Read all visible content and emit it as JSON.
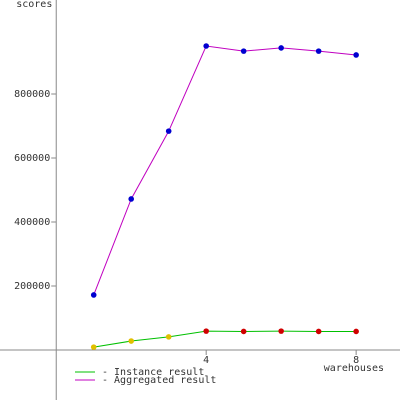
{
  "chart_data": {
    "type": "line",
    "y_label": "scores",
    "x_label": "warehouses",
    "x": [
      1,
      2,
      3,
      4,
      5,
      6,
      7,
      8
    ],
    "xlim": [
      -1.5,
      9.17
    ],
    "xticks": [
      4,
      8
    ],
    "ylim": [
      -156250,
      1093750
    ],
    "yticks": [
      200000,
      400000,
      600000,
      800000
    ],
    "axis_color": "#888888",
    "series": [
      {
        "name": "- Instance result",
        "color": "#00c000",
        "values": [
          9000,
          28000,
          41000,
          59000,
          58000,
          59000,
          58000,
          58000
        ],
        "marker_colors": [
          "#e0c000",
          "#e0c000",
          "#e0c000",
          "#d00000",
          "#d00000",
          "#d00000",
          "#d00000",
          "#d00000"
        ]
      },
      {
        "name": "- Aggregated result",
        "color": "#c000c0",
        "values": [
          172000,
          472000,
          684000,
          950000,
          934000,
          944000,
          934000,
          922000
        ],
        "marker_colors": [
          "#0000d0",
          "#0000d0",
          "#0000d0",
          "#0000d0",
          "#0000d0",
          "#0000d0",
          "#0000d0",
          "#0000d0"
        ]
      }
    ]
  }
}
